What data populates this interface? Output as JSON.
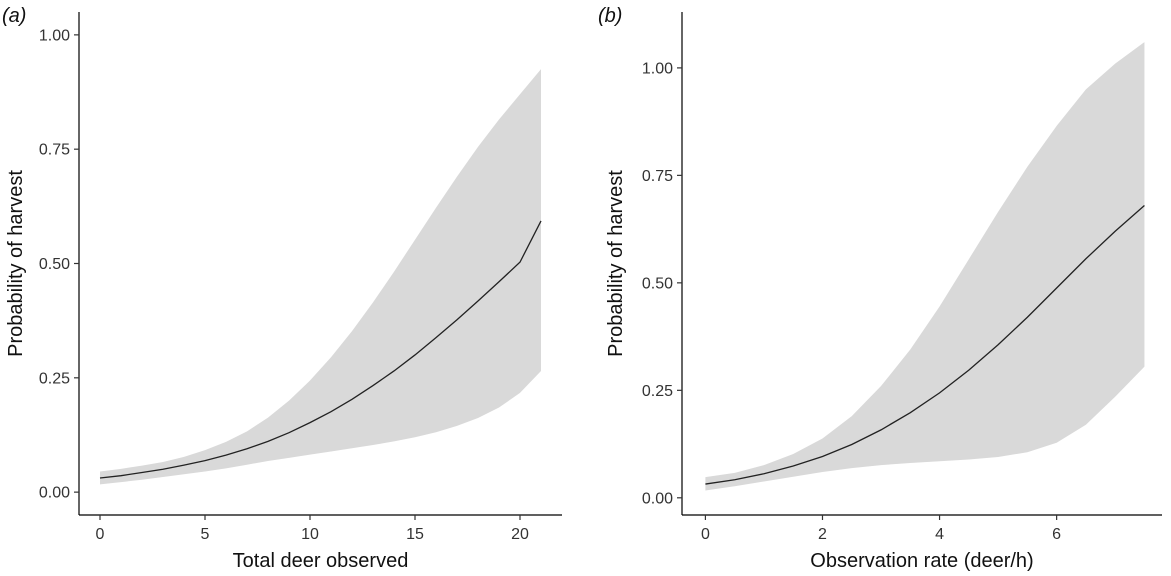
{
  "chart_data": [
    {
      "type": "line",
      "panel_label": "(a)",
      "xlabel": "Total deer observed",
      "ylabel": "Probability of harvest",
      "xlim": [
        -1,
        22
      ],
      "ylim": [
        -0.05,
        1.05
      ],
      "xticks": [
        0,
        5,
        10,
        15,
        20
      ],
      "xtick_labels": [
        "0",
        "5",
        "10",
        "15",
        "20"
      ],
      "yticks": [
        0,
        0.25,
        0.5,
        0.75,
        1.0
      ],
      "ytick_labels": [
        "0.00",
        "0.25",
        "0.50",
        "0.75",
        "1.00"
      ],
      "grid": false,
      "series": [
        {
          "role": "fitted probability with confidence band",
          "color": "#222222",
          "band_color": "#d9d9d9",
          "x": [
            0,
            1,
            2,
            3,
            4,
            5,
            6,
            7,
            8,
            9,
            10,
            11,
            12,
            13,
            14,
            15,
            16,
            17,
            18,
            19,
            20,
            21
          ],
          "y": [
            0.031,
            0.036,
            0.043,
            0.05,
            0.059,
            0.069,
            0.081,
            0.095,
            0.111,
            0.13,
            0.152,
            0.176,
            0.203,
            0.233,
            0.265,
            0.3,
            0.338,
            0.377,
            0.418,
            0.46,
            0.503,
            0.593
          ],
          "lower": [
            0.017,
            0.022,
            0.027,
            0.033,
            0.039,
            0.045,
            0.052,
            0.06,
            0.068,
            0.075,
            0.082,
            0.089,
            0.096,
            0.103,
            0.111,
            0.12,
            0.131,
            0.145,
            0.162,
            0.185,
            0.217,
            0.265
          ],
          "upper": [
            0.045,
            0.051,
            0.058,
            0.066,
            0.077,
            0.092,
            0.11,
            0.133,
            0.163,
            0.2,
            0.244,
            0.295,
            0.352,
            0.415,
            0.482,
            0.552,
            0.622,
            0.69,
            0.755,
            0.815,
            0.87,
            0.925
          ]
        }
      ]
    },
    {
      "type": "line",
      "panel_label": "(b)",
      "xlabel": "Observation rate (deer/h)",
      "ylabel": "Probability of harvest",
      "xlim": [
        -0.4,
        7.8
      ],
      "ylim": [
        -0.04,
        1.13
      ],
      "xticks": [
        0,
        2,
        4,
        6
      ],
      "xtick_labels": [
        "0",
        "2",
        "4",
        "6"
      ],
      "yticks": [
        0,
        0.25,
        0.5,
        0.75,
        1.0
      ],
      "ytick_labels": [
        "0.00",
        "0.25",
        "0.50",
        "0.75",
        "1.00"
      ],
      "grid": false,
      "series": [
        {
          "role": "fitted probability with confidence band",
          "color": "#222222",
          "band_color": "#d9d9d9",
          "x": [
            0,
            0.5,
            1,
            1.5,
            2,
            2.5,
            3,
            3.5,
            4,
            4.5,
            5,
            5.5,
            6,
            6.5,
            7,
            7.5
          ],
          "y": [
            0.032,
            0.042,
            0.056,
            0.074,
            0.096,
            0.124,
            0.158,
            0.198,
            0.244,
            0.297,
            0.356,
            0.42,
            0.488,
            0.556,
            0.62,
            0.68
          ],
          "lower": [
            0.017,
            0.027,
            0.038,
            0.049,
            0.06,
            0.069,
            0.076,
            0.081,
            0.085,
            0.089,
            0.095,
            0.106,
            0.128,
            0.17,
            0.235,
            0.305
          ],
          "upper": [
            0.048,
            0.058,
            0.076,
            0.102,
            0.138,
            0.19,
            0.26,
            0.345,
            0.445,
            0.555,
            0.665,
            0.77,
            0.865,
            0.95,
            1.01,
            1.06
          ]
        }
      ]
    }
  ]
}
